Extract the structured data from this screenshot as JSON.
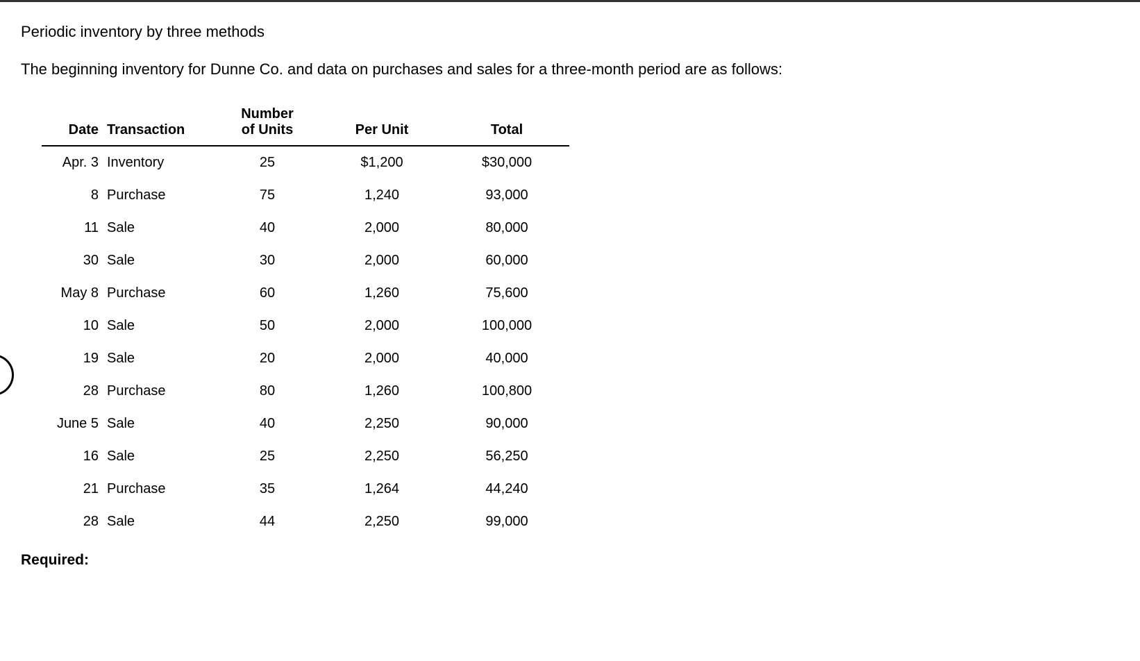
{
  "title": "Periodic inventory by three methods",
  "description": "The beginning inventory for Dunne Co. and data on purchases and sales for a three-month period are as follows:",
  "required_label": "Required:",
  "table": {
    "type": "table",
    "headers": {
      "date": "Date",
      "transaction": "Transaction",
      "units_line1": "Number",
      "units_line2": "of Units",
      "per_unit": "Per Unit",
      "total": "Total"
    },
    "rows": [
      {
        "date": "Apr. 3",
        "transaction": "Inventory",
        "units": "25",
        "per_unit": "$1,200",
        "total": "$30,000"
      },
      {
        "date": "8",
        "transaction": "Purchase",
        "units": "75",
        "per_unit": "1,240",
        "total": "93,000"
      },
      {
        "date": "11",
        "transaction": "Sale",
        "units": "40",
        "per_unit": "2,000",
        "total": "80,000"
      },
      {
        "date": "30",
        "transaction": "Sale",
        "units": "30",
        "per_unit": "2,000",
        "total": "60,000"
      },
      {
        "date": "May 8",
        "transaction": "Purchase",
        "units": "60",
        "per_unit": "1,260",
        "total": "75,600"
      },
      {
        "date": "10",
        "transaction": "Sale",
        "units": "50",
        "per_unit": "2,000",
        "total": "100,000"
      },
      {
        "date": "19",
        "transaction": "Sale",
        "units": "20",
        "per_unit": "2,000",
        "total": "40,000"
      },
      {
        "date": "28",
        "transaction": "Purchase",
        "units": "80",
        "per_unit": "1,260",
        "total": "100,800"
      },
      {
        "date": "June 5",
        "transaction": "Sale",
        "units": "40",
        "per_unit": "2,250",
        "total": "90,000"
      },
      {
        "date": "16",
        "transaction": "Sale",
        "units": "25",
        "per_unit": "2,250",
        "total": "56,250"
      },
      {
        "date": "21",
        "transaction": "Purchase",
        "units": "35",
        "per_unit": "1,264",
        "total": "44,240"
      },
      {
        "date": "28",
        "transaction": "Sale",
        "units": "44",
        "per_unit": "2,250",
        "total": "99,000"
      }
    ],
    "background_color": "#ffffff",
    "text_color": "#000000",
    "border_color": "#000000",
    "header_fontsize": 20,
    "cell_fontsize": 20,
    "font_family": "Verdana"
  }
}
